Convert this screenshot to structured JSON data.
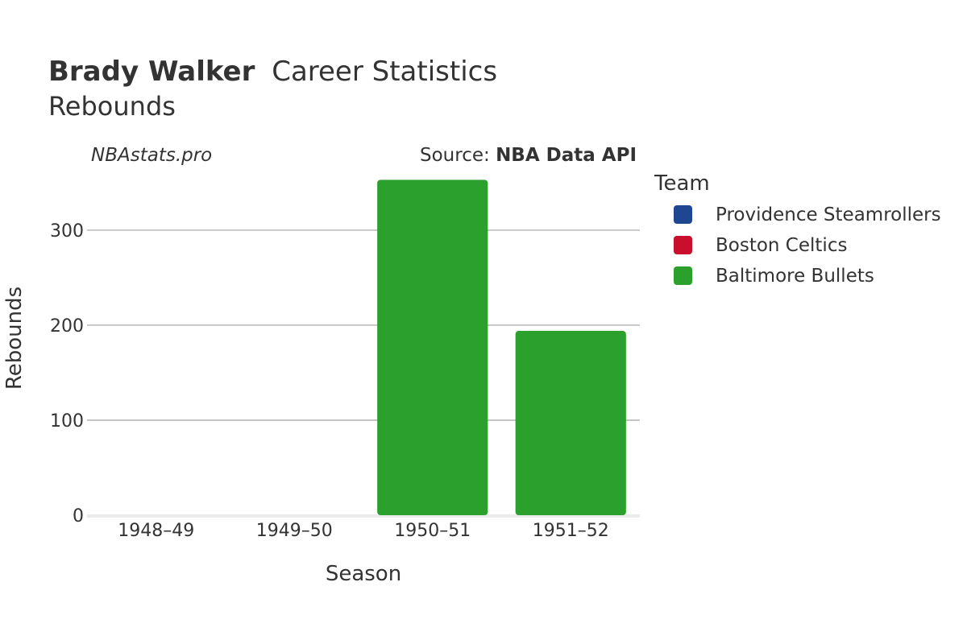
{
  "header": {
    "title_bold": "Brady Walker",
    "title_rest": "Career Statistics",
    "subtitle": "Rebounds"
  },
  "credits": {
    "site": "NBAstats.pro",
    "source_prefix": "Source: ",
    "source_name": "NBA Data API"
  },
  "legend": {
    "title": "Team"
  },
  "chart_data": {
    "type": "bar",
    "title": "Brady Walker Career Statistics",
    "subtitle": "Rebounds",
    "xlabel": "Season",
    "ylabel": "Rebounds",
    "categories": [
      "1948–49",
      "1949–50",
      "1950–51",
      "1951–52"
    ],
    "ylim": [
      0,
      355
    ],
    "yticks": [
      0,
      100,
      200,
      300
    ],
    "grid": true,
    "legend_position": "right",
    "series": [
      {
        "name": "Providence Steamrollers",
        "color": "#1f4690",
        "values": [
          0,
          null,
          null,
          null
        ]
      },
      {
        "name": "Boston Celtics",
        "color": "#c8102e",
        "values": [
          null,
          0,
          null,
          null
        ]
      },
      {
        "name": "Baltimore Bullets",
        "color": "#2ca02c",
        "values": [
          null,
          null,
          353,
          194
        ]
      }
    ]
  }
}
